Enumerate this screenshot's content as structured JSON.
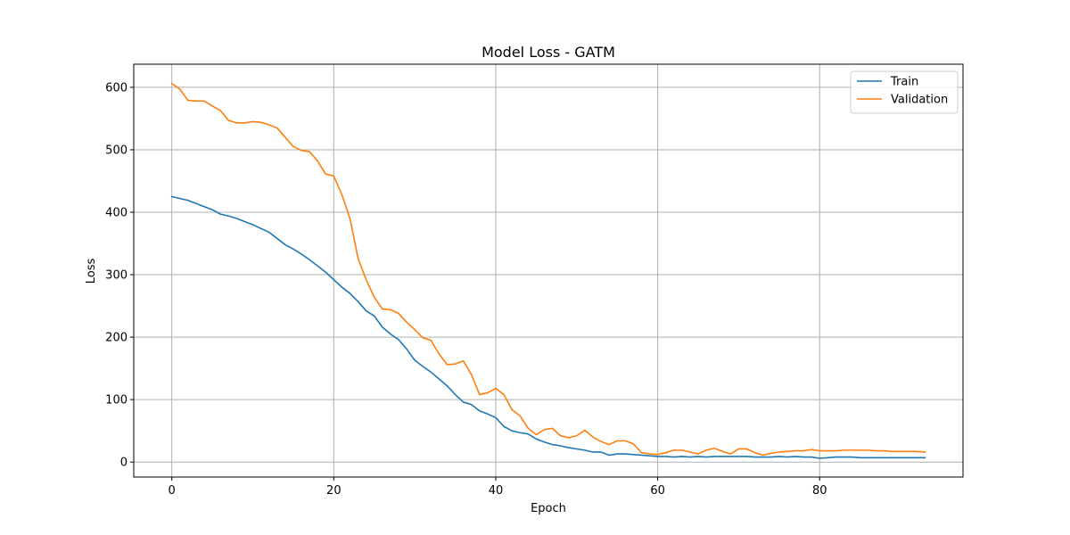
{
  "chart_data": {
    "type": "line",
    "title": "Model Loss - GATM",
    "xlabel": "Epoch",
    "ylabel": "Loss",
    "xlim": [
      -4.7,
      97.7
    ],
    "ylim": [
      -24,
      637
    ],
    "xticks": [
      0,
      20,
      40,
      60,
      80
    ],
    "yticks": [
      0,
      100,
      200,
      300,
      400,
      500,
      600
    ],
    "grid": true,
    "legend_position": "top-right",
    "series": [
      {
        "name": "Train",
        "color": "#1f77b4",
        "values": [
          425,
          422,
          419,
          414,
          409,
          404,
          397,
          394,
          390,
          385,
          380,
          374,
          368,
          358,
          348,
          341,
          333,
          324,
          314,
          304,
          292,
          280,
          270,
          257,
          242,
          234,
          216,
          205,
          196,
          181,
          163,
          153,
          144,
          133,
          122,
          108,
          96,
          92,
          82,
          77,
          71,
          57,
          50,
          47,
          45,
          37,
          32,
          28,
          26,
          23,
          21,
          19,
          16,
          16,
          11,
          13,
          13,
          12,
          11,
          10,
          9,
          9,
          8,
          9,
          8,
          9,
          8,
          9,
          9,
          9,
          9,
          9,
          8,
          8,
          8,
          9,
          8,
          9,
          8,
          8,
          6,
          7,
          8,
          8,
          8,
          7,
          7,
          7,
          7,
          7,
          7,
          7,
          7,
          7
        ]
      },
      {
        "name": "Validation",
        "color": "#ff7f0e",
        "values": [
          606,
          597,
          579,
          578,
          578,
          570,
          563,
          547,
          543,
          543,
          545,
          544,
          540,
          535,
          520,
          505,
          499,
          497,
          482,
          461,
          458,
          428,
          390,
          326,
          292,
          264,
          245,
          244,
          238,
          224,
          212,
          199,
          195,
          173,
          156,
          157,
          162,
          140,
          108,
          111,
          118,
          108,
          84,
          74,
          54,
          44,
          52,
          54,
          42,
          39,
          42,
          51,
          40,
          33,
          28,
          34,
          34,
          29,
          15,
          13,
          12,
          15,
          19,
          19,
          16,
          13,
          19,
          22,
          17,
          13,
          21,
          21,
          15,
          11,
          14,
          16,
          17,
          18,
          18,
          20,
          18,
          18,
          18,
          19,
          19,
          19,
          19,
          18,
          18,
          17,
          17,
          17,
          17,
          16
        ]
      }
    ]
  }
}
